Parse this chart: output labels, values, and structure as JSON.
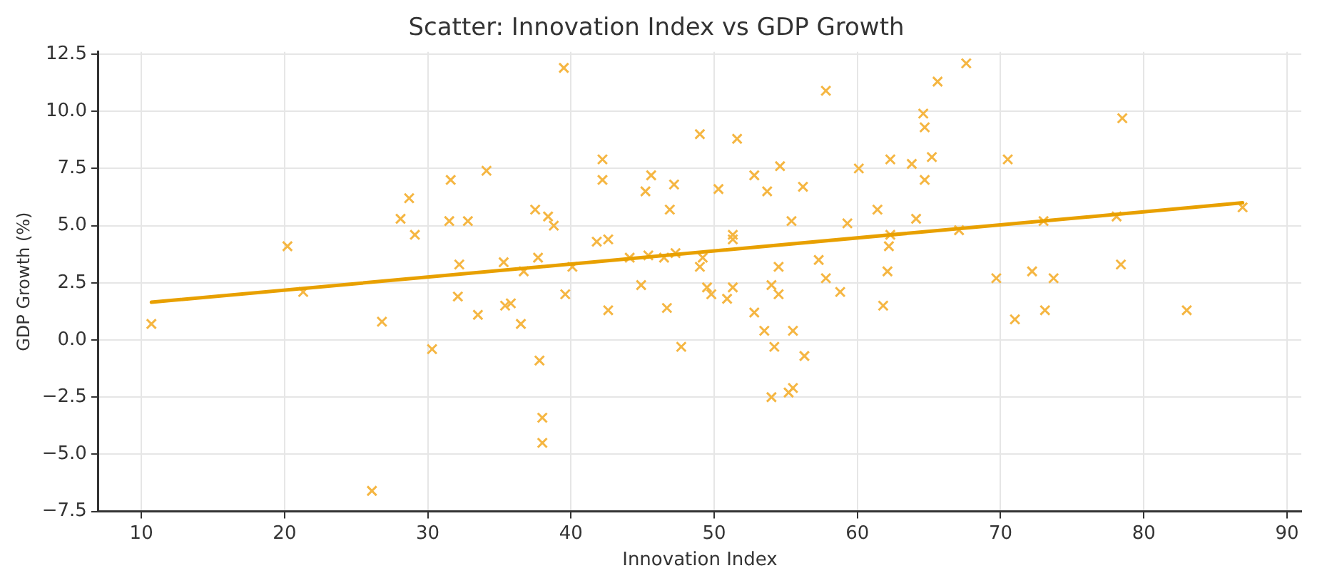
{
  "chart_data": {
    "type": "scatter",
    "title": "Scatter: Innovation Index vs GDP Growth",
    "xlabel": "Innovation Index",
    "ylabel": "GDP Growth (%)",
    "xlim": [
      7,
      91
    ],
    "xticks": [
      10,
      20,
      30,
      40,
      50,
      60,
      70,
      80,
      90
    ],
    "ylim": [
      -7.5,
      12.6
    ],
    "yticks": [
      {
        "value": -7.5,
        "label": "−7.5"
      },
      {
        "value": -5,
        "label": "−5.0"
      },
      {
        "value": -2.5,
        "label": "−2.5"
      },
      {
        "value": 0,
        "label": "0.0"
      },
      {
        "value": 2.5,
        "label": "2.5"
      },
      {
        "value": 5,
        "label": "5.0"
      },
      {
        "value": 7.5,
        "label": "7.5"
      },
      {
        "value": 10,
        "label": "10.0"
      },
      {
        "value": 12.5,
        "label": "12.5"
      }
    ],
    "grid": true,
    "series": [
      {
        "marker": "cross",
        "color": "#f5b642",
        "x": [
          10.7,
          20.2,
          21.3,
          26.8,
          26.1,
          28.1,
          28.7,
          29.1,
          30.3,
          31.6,
          31.5,
          32.8,
          32.1,
          32.2,
          33.5,
          34.1,
          35.3,
          35.4,
          35.8,
          36.5,
          36.7,
          37.5,
          38.4,
          38.8,
          37.7,
          37.8,
          38.0,
          38.0,
          39.5,
          39.6,
          40.1,
          42.2,
          42.2,
          41.8,
          42.6,
          42.6,
          44.1,
          44.9,
          45.4,
          45.2,
          45.6,
          46.5,
          46.7,
          46.9,
          47.2,
          47.3,
          47.7,
          49.0,
          49.0,
          49.2,
          49.5,
          49.8,
          50.3,
          50.9,
          51.3,
          51.3,
          51.3,
          51.6,
          52.8,
          52.8,
          53.5,
          53.7,
          54.0,
          54.0,
          54.2,
          54.5,
          54.5,
          54.6,
          55.2,
          55.4,
          55.5,
          55.5,
          56.2,
          56.3,
          57.3,
          57.8,
          57.8,
          58.8,
          59.3,
          60.1,
          61.4,
          61.8,
          62.1,
          62.2,
          62.3,
          62.3,
          63.8,
          64.1,
          64.6,
          64.7,
          64.7,
          65.2,
          65.6,
          67.1,
          67.6,
          69.7,
          70.5,
          71.0,
          72.2,
          73.0,
          73.1,
          73.7,
          78.1,
          78.4,
          78.5,
          83.0,
          86.9
        ],
        "values": [
          0.7,
          4.1,
          2.1,
          0.8,
          -6.6,
          5.3,
          6.2,
          4.6,
          -0.4,
          7.0,
          5.2,
          5.2,
          1.9,
          3.3,
          1.1,
          7.4,
          3.4,
          1.5,
          1.6,
          0.7,
          3.0,
          5.7,
          5.4,
          5.0,
          3.6,
          -0.9,
          -3.4,
          -4.5,
          11.9,
          2.0,
          3.2,
          7.9,
          7.0,
          4.3,
          4.4,
          1.3,
          3.6,
          2.4,
          3.7,
          6.5,
          7.2,
          3.6,
          1.4,
          5.7,
          6.8,
          3.8,
          -0.3,
          9.0,
          3.2,
          3.6,
          2.3,
          2.0,
          6.6,
          1.8,
          2.3,
          4.6,
          4.4,
          8.8,
          7.2,
          1.2,
          0.4,
          6.5,
          2.4,
          -2.5,
          -0.3,
          2.0,
          3.2,
          7.6,
          -2.3,
          5.2,
          0.4,
          -2.1,
          6.7,
          -0.7,
          3.5,
          10.9,
          2.7,
          2.1,
          5.1,
          7.5,
          5.7,
          1.5,
          3.0,
          4.1,
          4.6,
          7.9,
          7.7,
          5.3,
          9.9,
          9.3,
          7.0,
          8.0,
          11.3,
          4.8,
          12.1,
          2.7,
          7.9,
          0.9,
          3.0,
          5.2,
          1.3,
          2.7,
          5.4,
          3.3,
          9.7,
          1.3,
          5.8
        ]
      },
      {
        "type": "line",
        "color": "#e8a000",
        "x": [
          10.7,
          86.9
        ],
        "values": [
          1.65,
          6.0
        ]
      }
    ]
  }
}
